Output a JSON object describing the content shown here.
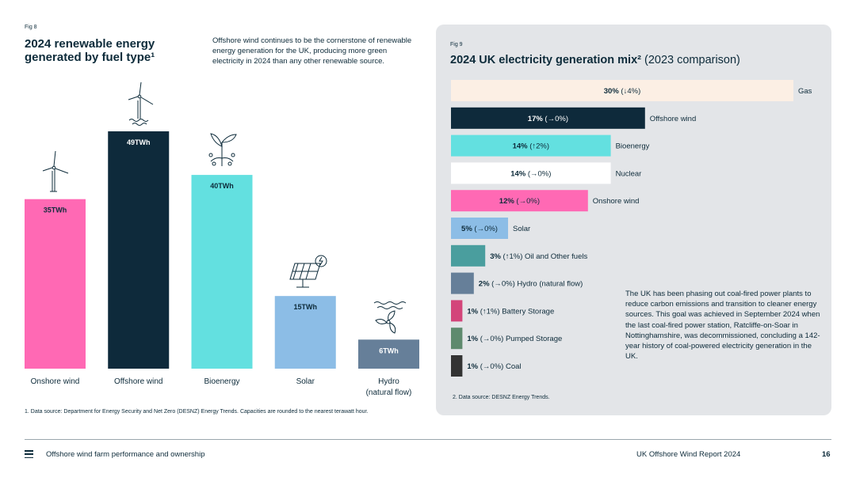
{
  "left_figure": {
    "fig_label": "Fig 8",
    "title": "2024 renewable energy generated by fuel type¹",
    "intro": "Offshore wind continues to be the cornerstone of renewable energy generation for the UK, producing more green electricity in 2024 than any other renewable source.",
    "footnote": "1. Data source: Department for Energy Security and Net Zero (DESNZ) Energy Trends. Capacities are rounded to the nearest terawatt hour."
  },
  "right_figure": {
    "fig_label": "Fig 9",
    "title_bold": "2024 UK electricity generation mix²",
    "title_rest": " (2023 comparison)",
    "note": "The UK has been phasing out coal-fired power plants to reduce carbon emissions and transition to cleaner energy sources. This goal was achieved in September 2024 when the last coal-fired power station, Ratcliffe-on-Soar in Nottinghamshire, was decommissioned, concluding a 142-year history of coal-powered electricity generation in the UK.",
    "footnote": "2. Data source: DESNZ Energy Trends."
  },
  "chart_data": [
    {
      "type": "bar",
      "title": "2024 renewable energy generated by fuel type¹",
      "categories": [
        "Onshore wind",
        "Offshore wind",
        "Bioenergy",
        "Solar",
        "Hydro (natural flow)"
      ],
      "values": [
        35,
        49,
        40,
        15,
        6
      ],
      "value_labels": [
        "35TWh",
        "49TWh",
        "40TWh",
        "15TWh",
        "6TWh"
      ],
      "colors": [
        "#ff69b4",
        "#0e2a3b",
        "#63e0e0",
        "#8cbde6",
        "#667f99"
      ],
      "label_colors": [
        "#0d2b3a",
        "#ffffff",
        "#0d2b3a",
        "#0d2b3a",
        "#ffffff"
      ],
      "icons": [
        "wind-turbine-icon",
        "offshore-wind-turbine-icon",
        "plant-sprout-icon",
        "solar-panel-icon",
        "hydro-turbine-icon"
      ],
      "ylim": [
        0,
        49
      ]
    },
    {
      "type": "bar",
      "orientation": "horizontal",
      "title": "2024 UK electricity generation mix² (2023 comparison)",
      "xlim": [
        0,
        30
      ],
      "categories": [
        "Gas",
        "Offshore wind",
        "Bioenergy",
        "Nuclear",
        "Onshore wind",
        "Solar",
        "Oil and Other fuels",
        "Hydro (natural flow)",
        "Battery Storage",
        "Pumped Storage",
        "Coal"
      ],
      "values": [
        30,
        17,
        14,
        14,
        12,
        5,
        3,
        2,
        1,
        1,
        1
      ],
      "value_labels": [
        "30%",
        "17%",
        "14%",
        "14%",
        "12%",
        "5%",
        "3%",
        "2%",
        "1%",
        "1%",
        "1%"
      ],
      "change_labels": [
        "(↓4%)",
        "(→0%)",
        "(↑2%)",
        "(→0%)",
        "(→0%)",
        "(→0%)",
        "(↑1%)",
        "(→0%)",
        "(↑1%)",
        "(→0%)",
        "(→0%)"
      ],
      "label_positions": [
        "inside",
        "inside",
        "inside",
        "inside",
        "inside",
        "inside",
        "outside",
        "outside",
        "outside",
        "outside",
        "outside"
      ],
      "colors": [
        "#fcefe4",
        "#0e2a3b",
        "#63e0e0",
        "#ffffff",
        "#ff69b4",
        "#8cbde6",
        "#4a9e9e",
        "#667f99",
        "#d3457a",
        "#5e8a6e",
        "#333333"
      ],
      "label_colors": [
        "#0d2b3a",
        "#ffffff",
        "#0d2b3a",
        "#0d2b3a",
        "#0d2b3a",
        "#0d2b3a",
        "#0d2b3a",
        "#0d2b3a",
        "#0d2b3a",
        "#0d2b3a",
        "#0d2b3a"
      ]
    }
  ],
  "footer": {
    "menu_icon": "hamburger-menu-icon",
    "section": "Offshore wind farm performance and ownership",
    "report": "UK Offshore Wind Report 2024",
    "page": "16"
  }
}
